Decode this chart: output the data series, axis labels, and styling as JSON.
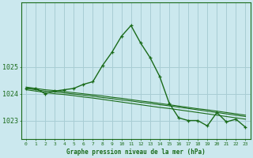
{
  "title": "Graphe pression niveau de la mer (hPa)",
  "background_color": "#cbe8ee",
  "grid_color": "#a8cdd4",
  "line_color": "#1a6b1a",
  "x_labels": [
    "0",
    "1",
    "2",
    "3",
    "4",
    "5",
    "6",
    "7",
    "8",
    "9",
    "10",
    "11",
    "12",
    "13",
    "14",
    "15",
    "16",
    "17",
    "18",
    "19",
    "20",
    "21",
    "22",
    "23"
  ],
  "ylim": [
    1022.3,
    1027.4
  ],
  "yticks": [
    1023,
    1024,
    1025
  ],
  "series1": [
    1024.2,
    1024.2,
    1024.0,
    1024.1,
    1024.15,
    1024.2,
    1024.35,
    1024.45,
    1025.05,
    1025.55,
    1026.15,
    1026.55,
    1025.9,
    1025.35,
    1024.65,
    1023.65,
    1023.1,
    1023.0,
    1023.0,
    1022.8,
    1023.3,
    1022.95,
    1023.05,
    1022.75
  ],
  "series2": [
    1024.15,
    1024.1,
    1024.05,
    1024.0,
    1023.97,
    1023.93,
    1023.88,
    1023.84,
    1023.79,
    1023.74,
    1023.69,
    1023.64,
    1023.59,
    1023.54,
    1023.49,
    1023.45,
    1023.4,
    1023.35,
    1023.3,
    1023.25,
    1023.2,
    1023.15,
    1023.1,
    1023.05
  ],
  "series3": [
    1024.2,
    1024.15,
    1024.1,
    1024.07,
    1024.03,
    1023.99,
    1023.95,
    1023.91,
    1023.86,
    1023.82,
    1023.77,
    1023.73,
    1023.68,
    1023.64,
    1023.59,
    1023.55,
    1023.5,
    1023.45,
    1023.4,
    1023.35,
    1023.3,
    1023.25,
    1023.2,
    1023.15
  ],
  "series4": [
    1024.25,
    1024.2,
    1024.15,
    1024.12,
    1024.08,
    1024.04,
    1024.0,
    1023.96,
    1023.92,
    1023.87,
    1023.83,
    1023.78,
    1023.73,
    1023.69,
    1023.64,
    1023.59,
    1023.54,
    1023.49,
    1023.44,
    1023.4,
    1023.35,
    1023.3,
    1023.25,
    1023.2
  ]
}
